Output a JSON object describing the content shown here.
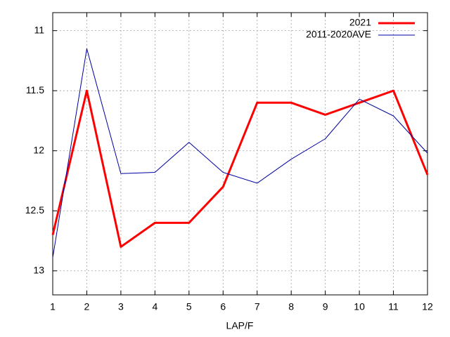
{
  "chart_data": {
    "type": "line",
    "x_label": "LAP/F",
    "x": [
      1,
      2,
      3,
      4,
      5,
      6,
      7,
      8,
      9,
      10,
      11,
      12
    ],
    "xlim": [
      1,
      12
    ],
    "xticks": [
      1,
      2,
      3,
      4,
      5,
      6,
      7,
      8,
      9,
      10,
      11,
      12
    ],
    "ylim": [
      10.85,
      13.2
    ],
    "yticks": [
      11,
      11.5,
      12,
      12.5,
      13
    ],
    "y_inverted": true,
    "grid": true,
    "legend": "top-right",
    "series": [
      {
        "name": "2021",
        "color": "#ff0000",
        "width": 3,
        "values": [
          12.7,
          11.5,
          12.8,
          12.6,
          12.6,
          12.3,
          11.6,
          11.6,
          11.7,
          11.6,
          11.5,
          12.2
        ]
      },
      {
        "name": "2011-2020AVE",
        "color": "#0000a0",
        "width": 1,
        "values": [
          12.89,
          11.15,
          12.19,
          12.18,
          11.93,
          12.18,
          12.27,
          12.07,
          11.9,
          11.57,
          11.71,
          12.02
        ]
      }
    ]
  }
}
